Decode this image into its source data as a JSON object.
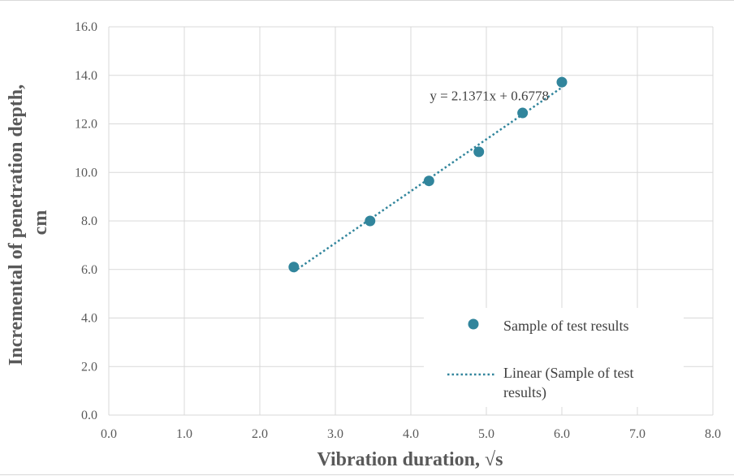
{
  "chart_data": {
    "type": "scatter",
    "title": "",
    "xlabel": "Vibration duration, √s",
    "ylabel_lines": [
      "Incremental of penetration depth,",
      "cm"
    ],
    "xlim": [
      0,
      8
    ],
    "ylim": [
      0,
      16
    ],
    "xticks": [
      "0.0",
      "1.0",
      "2.0",
      "3.0",
      "4.0",
      "5.0",
      "6.0",
      "7.0",
      "8.0"
    ],
    "yticks": [
      "0.0",
      "2.0",
      "4.0",
      "6.0",
      "8.0",
      "10.0",
      "12.0",
      "14.0",
      "16.0"
    ],
    "grid": true,
    "legend_position": "bottom-right",
    "series": [
      {
        "name": "Sample of test results",
        "kind": "markers",
        "color": "#31859c",
        "x": [
          2.45,
          3.46,
          4.24,
          4.9,
          5.48,
          6.0
        ],
        "y": [
          6.1,
          8.0,
          9.65,
          10.85,
          12.45,
          13.72
        ]
      },
      {
        "name": "Linear (Sample of test results)",
        "kind": "trendline",
        "style": "dotted",
        "color": "#31859c",
        "slope": 2.1371,
        "intercept": 0.6778,
        "x_range": [
          2.45,
          6.0
        ]
      }
    ],
    "annotations": [
      {
        "text": "y = 2.1371x + 0.6778",
        "near": "upper end of trendline"
      }
    ],
    "colors": {
      "series": "#31859c",
      "grid": "#d9d9d9",
      "text": "#595959"
    }
  }
}
